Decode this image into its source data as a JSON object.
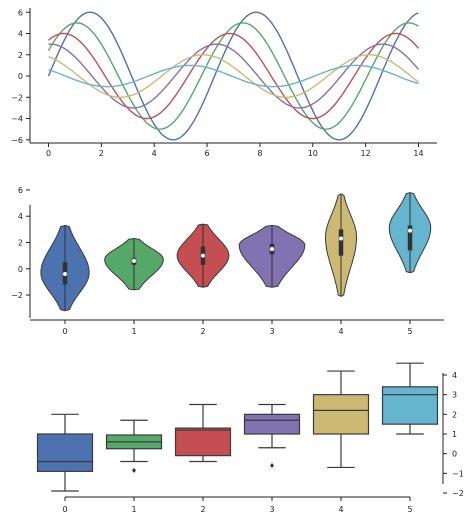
{
  "colors": {
    "palette": [
      "#4c72b0",
      "#55a868",
      "#c44e52",
      "#8172b2",
      "#ccb974",
      "#64b5cd"
    ],
    "axis": "#222222",
    "edge": "#3a3a3a"
  },
  "chart_data": [
    {
      "type": "line",
      "title": "",
      "xlabel": "",
      "ylabel": "",
      "xlim": [
        -0.7,
        14.7
      ],
      "ylim": [
        -6.3,
        6.4
      ],
      "x_ticks": [
        0,
        2,
        4,
        6,
        8,
        10,
        12,
        14
      ],
      "y_ticks": [
        -6,
        -4,
        -2,
        0,
        2,
        4,
        6
      ],
      "x_tick_labels": [
        "0",
        "2",
        "4",
        "6",
        "8",
        "10",
        "12",
        "14"
      ],
      "y_tick_labels": [
        "−6",
        "−4",
        "−2",
        "0",
        "2",
        "4",
        "6"
      ],
      "x_range": [
        0,
        14
      ],
      "series": [
        {
          "amplitude": 6.0,
          "phase": 0.0
        },
        {
          "amplitude": 5.0,
          "phase": 0.5
        },
        {
          "amplitude": 4.0,
          "phase": 1.0
        },
        {
          "amplitude": 3.0,
          "phase": 1.5
        },
        {
          "amplitude": 2.0,
          "phase": 2.0
        },
        {
          "amplitude": 1.0,
          "phase": 2.5
        }
      ],
      "function": "y = amplitude * sin(x + phase)"
    },
    {
      "type": "violin",
      "title": "",
      "xlabel": "",
      "ylabel": "",
      "categories": [
        "0",
        "1",
        "2",
        "3",
        "4",
        "5"
      ],
      "ylim": [
        -3.9,
        6.3
      ],
      "y_ticks": [
        -2,
        0,
        2,
        4,
        6
      ],
      "y_tick_labels": [
        "−2",
        "0",
        "2",
        "4",
        "6"
      ],
      "violins": [
        {
          "min": -3.2,
          "max": 3.3,
          "q1": -1.2,
          "median": -0.4,
          "q3": 0.5,
          "widest": -0.3,
          "width": 0.7
        },
        {
          "min": -1.6,
          "max": 2.3,
          "q1": 0.3,
          "median": 0.6,
          "q3": 0.8,
          "widest": 0.7,
          "width": 0.85
        },
        {
          "min": -1.4,
          "max": 3.4,
          "q1": 0.3,
          "median": 1.0,
          "q3": 1.7,
          "widest": 1.0,
          "width": 0.75
        },
        {
          "min": -1.4,
          "max": 3.3,
          "q1": 1.1,
          "median": 1.5,
          "q3": 1.9,
          "widest": 1.8,
          "width": 0.95
        },
        {
          "min": -2.1,
          "max": 5.7,
          "q1": 1.0,
          "median": 2.3,
          "q3": 3.0,
          "widest": 2.4,
          "width": 0.45
        },
        {
          "min": -0.3,
          "max": 5.8,
          "q1": 1.4,
          "median": 2.9,
          "q3": 3.3,
          "widest": 3.1,
          "width": 0.6
        }
      ]
    },
    {
      "type": "box",
      "title": "",
      "xlabel": "",
      "ylabel": "",
      "categories": [
        "0",
        "1",
        "2",
        "3",
        "4",
        "5"
      ],
      "ylim": [
        -2.0,
        4.5
      ],
      "y_ticks": [
        -2,
        -1,
        0,
        1,
        2,
        3,
        4
      ],
      "y_tick_labels": [
        "−2",
        "−1",
        "0",
        "1",
        "2",
        "3",
        "4"
      ],
      "y_axis_side": "right",
      "boxes": [
        {
          "whisker_low": -1.9,
          "q1": -0.9,
          "median": -0.4,
          "q3": 1.0,
          "whisker_high": 2.0,
          "outliers": []
        },
        {
          "whisker_low": -0.4,
          "q1": 0.25,
          "median": 0.6,
          "q3": 0.95,
          "whisker_high": 1.7,
          "outliers": [
            -0.85
          ]
        },
        {
          "whisker_low": -0.4,
          "q1": -0.1,
          "median": 1.2,
          "q3": 1.3,
          "whisker_high": 2.5,
          "outliers": []
        },
        {
          "whisker_low": 0.3,
          "q1": 1.0,
          "median": 1.7,
          "q3": 2.0,
          "whisker_high": 2.5,
          "outliers": [
            -0.6
          ]
        },
        {
          "whisker_low": -0.7,
          "q1": 1.0,
          "median": 2.2,
          "q3": 3.0,
          "whisker_high": 4.2,
          "outliers": []
        },
        {
          "whisker_low": 1.0,
          "q1": 1.5,
          "median": 3.0,
          "q3": 3.4,
          "whisker_high": 4.6,
          "outliers": []
        }
      ]
    }
  ]
}
